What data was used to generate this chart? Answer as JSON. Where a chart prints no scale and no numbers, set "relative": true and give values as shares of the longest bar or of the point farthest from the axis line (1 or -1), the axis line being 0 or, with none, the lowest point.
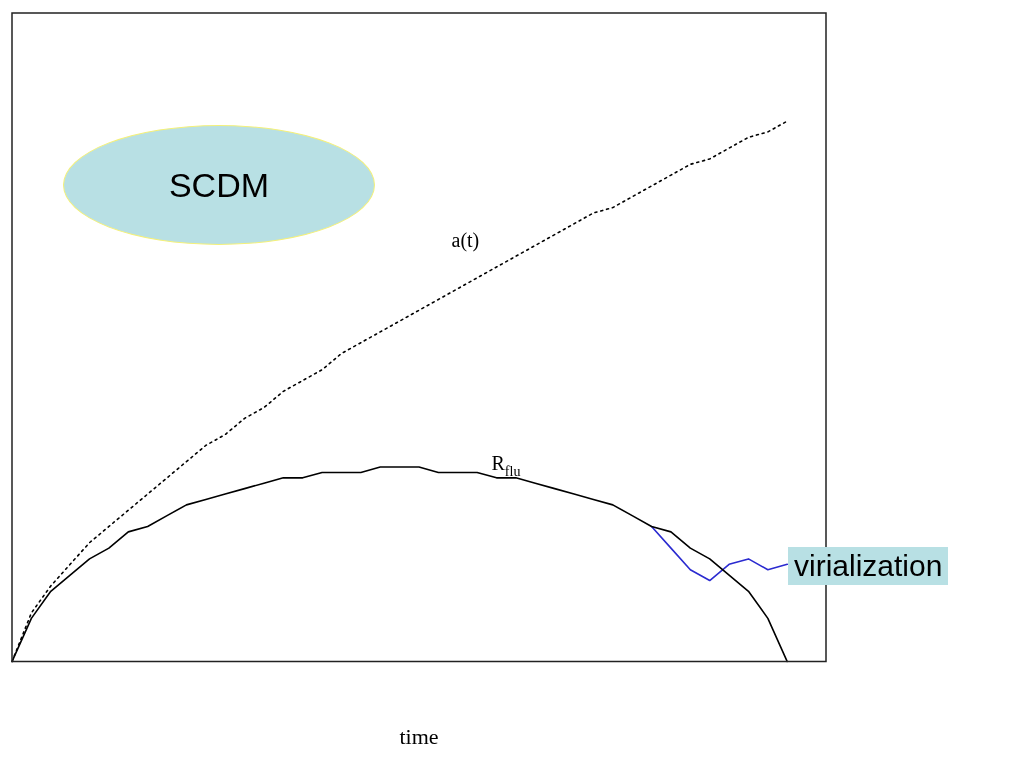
{
  "chart_data": {
    "type": "line",
    "relative": true,
    "xlabel": "time",
    "legend": false,
    "marker": "none",
    "categories": [
      null,
      null,
      null,
      null,
      null,
      null,
      null,
      null,
      null,
      null,
      null,
      null,
      null,
      null,
      null,
      null,
      null,
      null,
      null,
      null,
      null,
      null,
      null,
      null,
      null,
      null,
      null,
      null,
      null,
      null,
      null,
      null,
      null,
      null,
      null,
      null,
      null,
      null,
      null,
      null,
      null,
      null,
      null
    ],
    "series": [
      {
        "name": "a(t)",
        "color": "#000000",
        "line_style": "dotted",
        "values": [
          0,
          0.09,
          0.14,
          0.18,
          0.22,
          0.25,
          0.28,
          0.31,
          0.34,
          0.37,
          0.4,
          0.42,
          0.45,
          0.47,
          0.5,
          0.52,
          0.54,
          0.57,
          0.59,
          0.61,
          0.63,
          0.65,
          0.67,
          0.69,
          0.71,
          0.73,
          0.75,
          0.77,
          0.79,
          0.81,
          0.83,
          0.84,
          0.86,
          0.88,
          0.9,
          0.92,
          0.93,
          0.95,
          0.97,
          0.98,
          1,
          null,
          null
        ]
      },
      {
        "name": "R$_{flu}$",
        "color": "#000000",
        "line_style": "solid",
        "values": [
          0,
          0.08,
          0.13,
          0.16,
          0.19,
          0.21,
          0.24,
          0.25,
          0.27,
          0.29,
          0.3,
          0.31,
          0.32,
          0.33,
          0.34,
          0.34,
          0.35,
          0.35,
          0.35,
          0.36,
          0.36,
          0.36,
          0.35,
          0.35,
          0.35,
          0.34,
          0.34,
          0.33,
          0.32,
          0.31,
          0.3,
          0.29,
          0.27,
          0.25,
          0.24,
          0.21,
          0.19,
          0.16,
          0.13,
          0.08,
          0,
          null,
          null
        ]
      },
      {
        "color": "#2b2bd0",
        "line_style": "solid",
        "values": [
          null,
          null,
          null,
          null,
          null,
          null,
          null,
          null,
          null,
          null,
          null,
          null,
          null,
          null,
          null,
          null,
          null,
          null,
          null,
          null,
          null,
          null,
          null,
          null,
          null,
          null,
          null,
          null,
          null,
          null,
          null,
          null,
          null,
          0.25,
          0.21,
          0.17,
          0.15,
          0.18,
          0.19,
          0.17,
          0.18,
          null,
          null
        ]
      }
    ],
    "annotations": [
      "SCDM",
      "virialization"
    ]
  }
}
